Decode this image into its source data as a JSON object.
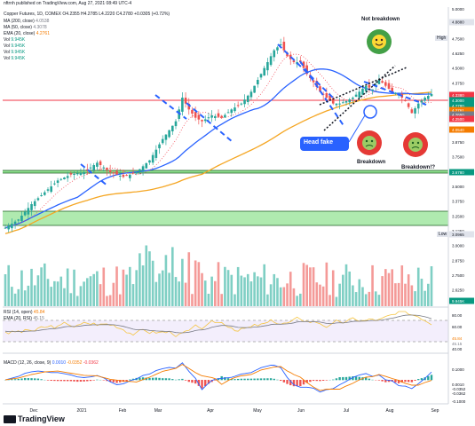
{
  "header": {
    "published": "nftrnh published on TradingView.com, Aug 27, 2021 08:49 UTC-4",
    "symbol_line": "Copper Futures, 1D, COMEX  O4.2355  H4.2785  L4.2220  C4.2780  +0.0305 (+0.72%)",
    "indicators": [
      {
        "label": "MA (200, close)",
        "value": "4.0538",
        "color": "#787b86"
      },
      {
        "label": "MA (50, close)",
        "value": "4.3078",
        "color": "#787b86"
      },
      {
        "label": "EMA (20, close)",
        "value": "4.2761",
        "color": "#f57c00"
      },
      {
        "label": "Vol",
        "value": "9.945K",
        "color": "#089981"
      },
      {
        "label": "Vol",
        "value": "9.945K",
        "color": "#089981"
      },
      {
        "label": "Vol",
        "value": "9.945K",
        "color": "#089981"
      },
      {
        "label": "Vol",
        "value": "9.945K",
        "color": "#089981"
      }
    ]
  },
  "annotations": {
    "not_breakdown": "Not breakdown",
    "head_fake": "Head fake",
    "breakdown": "Breakdown",
    "breakdown2": "Breakdown!?",
    "high": "High",
    "low": "Low"
  },
  "rsi": {
    "label": "RSI (14, open)",
    "value": "45.84",
    "ema_label": "EMA (20, RSI)",
    "ema_value": "45.15"
  },
  "macd": {
    "label": "MACD (12, 26, close, 9)",
    "v1": "0.0010",
    "v2": "-0.0352",
    "v3": "-0.0362"
  },
  "footer": {
    "logo": "TradingView"
  },
  "price_axis": {
    "ticks": [
      "5.0000",
      "4.8750",
      "4.7500",
      "4.6250",
      "4.5000",
      "4.3750",
      "4.2500",
      "4.1250",
      "4.0000",
      "3.8750",
      "3.7500",
      "3.6250",
      "3.5000",
      "3.3750",
      "3.2500",
      "3.1250",
      "3.0000",
      "2.8750",
      "2.7500",
      "2.6250"
    ],
    "high_value": "4.8880",
    "low_value": "3.0965",
    "labels": [
      {
        "text": "4.3380",
        "color": "#f23645"
      },
      {
        "text": "4.3000",
        "color": "#089981"
      },
      {
        "text": "4.2780",
        "color": "#089981"
      },
      {
        "text": "4.2761",
        "color": "#f57c00"
      },
      {
        "text": "4.2650",
        "color": "#787b86"
      },
      {
        "text": "4.2500",
        "color": "#f23645"
      },
      {
        "text": "4.0540",
        "color": "#f57c00"
      },
      {
        "text": "3.6780",
        "color": "#089981"
      },
      {
        "text": "9.945K",
        "color": "#089981"
      }
    ]
  },
  "rsi_axis": {
    "ticks": [
      "80.00",
      "60.00",
      "45.84",
      "45.15",
      "40.00"
    ]
  },
  "macd_axis": {
    "ticks": [
      "0.1000",
      "0.0010",
      "-0.0352",
      "-0.0362",
      "-0.1000"
    ]
  },
  "time_axis": {
    "labels": [
      "Dec",
      "2021",
      "Feb",
      "Mar",
      "Apr",
      "May",
      "Jun",
      "Jul",
      "Aug",
      "Sep"
    ]
  },
  "chart_data": {
    "type": "candlestick",
    "title": "Copper Futures, 1D, COMEX",
    "ylim": [
      2.6,
      5.0
    ],
    "months": [
      "Dec",
      "2021",
      "Feb",
      "Mar",
      "Apr",
      "May",
      "Jun",
      "Jul",
      "Aug",
      "Sep"
    ],
    "close_path": [
      [
        0,
        3.15
      ],
      [
        4,
        3.22
      ],
      [
        8,
        3.35
      ],
      [
        12,
        3.45
      ],
      [
        16,
        3.55
      ],
      [
        20,
        3.6
      ],
      [
        24,
        3.62
      ],
      [
        28,
        3.7
      ],
      [
        32,
        3.62
      ],
      [
        36,
        3.58
      ],
      [
        40,
        3.62
      ],
      [
        44,
        3.72
      ],
      [
        48,
        3.9
      ],
      [
        52,
        4.05
      ],
      [
        54,
        4.25
      ],
      [
        56,
        4.15
      ],
      [
        58,
        4.08
      ],
      [
        60,
        4.05
      ],
      [
        63,
        4.1
      ],
      [
        66,
        4.08
      ],
      [
        69,
        4.15
      ],
      [
        72,
        4.2
      ],
      [
        75,
        4.3
      ],
      [
        78,
        4.45
      ],
      [
        80,
        4.55
      ],
      [
        82,
        4.65
      ],
      [
        84,
        4.7
      ],
      [
        86,
        4.6
      ],
      [
        88,
        4.55
      ],
      [
        90,
        4.55
      ],
      [
        92,
        4.45
      ],
      [
        94,
        4.38
      ],
      [
        96,
        4.3
      ],
      [
        98,
        4.25
      ],
      [
        100,
        4.2
      ],
      [
        102,
        4.2
      ],
      [
        104,
        4.22
      ],
      [
        106,
        4.25
      ],
      [
        108,
        4.3
      ],
      [
        110,
        4.35
      ],
      [
        112,
        4.32
      ],
      [
        114,
        4.4
      ],
      [
        116,
        4.35
      ],
      [
        118,
        4.3
      ],
      [
        120,
        4.28
      ],
      [
        122,
        4.22
      ],
      [
        124,
        4.12
      ],
      [
        126,
        4.2
      ],
      [
        128,
        4.25
      ],
      [
        130,
        4.28
      ]
    ],
    "ma200": {
      "name": "MA (200, close)",
      "value": 4.0538
    },
    "ma50": {
      "name": "MA (50, close)",
      "value": 4.3078
    },
    "ema20": {
      "name": "EMA (20, close)",
      "value": 4.2761
    },
    "support_zones": [
      [
        3.2,
        3.3
      ],
      [
        3.678,
        3.69
      ]
    ],
    "resistance_level": 4.338
  }
}
